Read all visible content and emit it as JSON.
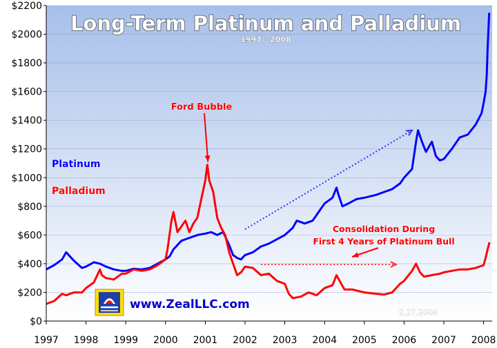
{
  "chart_data": {
    "type": "line",
    "title": "Long-Term Platinum and Palladium",
    "subtitle": "1997 - 2008",
    "xlabel": "",
    "ylabel": "",
    "xlim": [
      1997,
      2008.17
    ],
    "ylim": [
      0,
      2200
    ],
    "x_ticks": [
      "1997",
      "1998",
      "1999",
      "2000",
      "2001",
      "2002",
      "2003",
      "2004",
      "2005",
      "2006",
      "2007",
      "2008"
    ],
    "y_ticks": [
      "$0",
      "$200",
      "$400",
      "$600",
      "$800",
      "$1000",
      "$1200",
      "$1400",
      "$1600",
      "$1800",
      "$2000",
      "$2200"
    ],
    "grid": "horizontal",
    "legend": "left",
    "series": [
      {
        "name": "Platinum",
        "color": "#0000ff",
        "points": [
          [
            1997.0,
            360
          ],
          [
            1997.2,
            390
          ],
          [
            1997.4,
            430
          ],
          [
            1997.5,
            480
          ],
          [
            1997.7,
            420
          ],
          [
            1997.9,
            370
          ],
          [
            1998.0,
            380
          ],
          [
            1998.2,
            410
          ],
          [
            1998.35,
            400
          ],
          [
            1998.5,
            380
          ],
          [
            1998.7,
            360
          ],
          [
            1998.9,
            350
          ],
          [
            1999.0,
            350
          ],
          [
            1999.2,
            365
          ],
          [
            1999.4,
            360
          ],
          [
            1999.6,
            370
          ],
          [
            1999.8,
            400
          ],
          [
            2000.0,
            430
          ],
          [
            2000.1,
            450
          ],
          [
            2000.2,
            500
          ],
          [
            2000.4,
            560
          ],
          [
            2000.6,
            580
          ],
          [
            2000.8,
            600
          ],
          [
            2001.0,
            610
          ],
          [
            2001.15,
            620
          ],
          [
            2001.3,
            600
          ],
          [
            2001.45,
            620
          ],
          [
            2001.5,
            590
          ],
          [
            2001.6,
            530
          ],
          [
            2001.7,
            460
          ],
          [
            2001.8,
            440
          ],
          [
            2001.9,
            430
          ],
          [
            2002.0,
            460
          ],
          [
            2002.2,
            480
          ],
          [
            2002.4,
            520
          ],
          [
            2002.6,
            540
          ],
          [
            2002.8,
            570
          ],
          [
            2003.0,
            600
          ],
          [
            2003.2,
            650
          ],
          [
            2003.3,
            700
          ],
          [
            2003.5,
            680
          ],
          [
            2003.7,
            700
          ],
          [
            2003.9,
            780
          ],
          [
            2004.0,
            820
          ],
          [
            2004.2,
            860
          ],
          [
            2004.3,
            930
          ],
          [
            2004.35,
            880
          ],
          [
            2004.45,
            800
          ],
          [
            2004.6,
            820
          ],
          [
            2004.8,
            850
          ],
          [
            2005.0,
            860
          ],
          [
            2005.3,
            880
          ],
          [
            2005.5,
            900
          ],
          [
            2005.7,
            920
          ],
          [
            2005.9,
            960
          ],
          [
            2006.0,
            1000
          ],
          [
            2006.2,
            1060
          ],
          [
            2006.3,
            1250
          ],
          [
            2006.35,
            1330
          ],
          [
            2006.45,
            1250
          ],
          [
            2006.55,
            1180
          ],
          [
            2006.7,
            1250
          ],
          [
            2006.8,
            1150
          ],
          [
            2006.9,
            1120
          ],
          [
            2007.0,
            1130
          ],
          [
            2007.2,
            1200
          ],
          [
            2007.4,
            1280
          ],
          [
            2007.6,
            1300
          ],
          [
            2007.8,
            1370
          ],
          [
            2007.95,
            1450
          ],
          [
            2008.0,
            1520
          ],
          [
            2008.05,
            1600
          ],
          [
            2008.08,
            1720
          ],
          [
            2008.1,
            1900
          ],
          [
            2008.12,
            2020
          ],
          [
            2008.14,
            2150
          ]
        ]
      },
      {
        "name": "Palladium",
        "color": "#ff0000",
        "points": [
          [
            1997.0,
            120
          ],
          [
            1997.2,
            140
          ],
          [
            1997.4,
            190
          ],
          [
            1997.5,
            180
          ],
          [
            1997.7,
            200
          ],
          [
            1997.9,
            200
          ],
          [
            1998.0,
            230
          ],
          [
            1998.2,
            270
          ],
          [
            1998.35,
            360
          ],
          [
            1998.4,
            320
          ],
          [
            1998.5,
            300
          ],
          [
            1998.7,
            290
          ],
          [
            1998.9,
            330
          ],
          [
            1999.0,
            330
          ],
          [
            1999.2,
            360
          ],
          [
            1999.4,
            350
          ],
          [
            1999.6,
            360
          ],
          [
            1999.8,
            390
          ],
          [
            2000.0,
            430
          ],
          [
            2000.05,
            500
          ],
          [
            2000.15,
            700
          ],
          [
            2000.2,
            760
          ],
          [
            2000.3,
            620
          ],
          [
            2000.5,
            700
          ],
          [
            2000.6,
            620
          ],
          [
            2000.7,
            680
          ],
          [
            2000.8,
            720
          ],
          [
            2000.9,
            850
          ],
          [
            2001.0,
            980
          ],
          [
            2001.05,
            1090
          ],
          [
            2001.1,
            980
          ],
          [
            2001.2,
            900
          ],
          [
            2001.3,
            720
          ],
          [
            2001.4,
            650
          ],
          [
            2001.5,
            600
          ],
          [
            2001.6,
            480
          ],
          [
            2001.7,
            400
          ],
          [
            2001.8,
            320
          ],
          [
            2001.9,
            340
          ],
          [
            2002.0,
            380
          ],
          [
            2002.2,
            370
          ],
          [
            2002.4,
            320
          ],
          [
            2002.6,
            330
          ],
          [
            2002.8,
            280
          ],
          [
            2003.0,
            260
          ],
          [
            2003.1,
            190
          ],
          [
            2003.2,
            160
          ],
          [
            2003.4,
            170
          ],
          [
            2003.6,
            200
          ],
          [
            2003.8,
            180
          ],
          [
            2004.0,
            230
          ],
          [
            2004.2,
            250
          ],
          [
            2004.3,
            320
          ],
          [
            2004.4,
            270
          ],
          [
            2004.5,
            220
          ],
          [
            2004.7,
            220
          ],
          [
            2005.0,
            200
          ],
          [
            2005.3,
            190
          ],
          [
            2005.5,
            185
          ],
          [
            2005.7,
            200
          ],
          [
            2005.9,
            260
          ],
          [
            2006.0,
            280
          ],
          [
            2006.2,
            350
          ],
          [
            2006.3,
            400
          ],
          [
            2006.4,
            340
          ],
          [
            2006.5,
            310
          ],
          [
            2006.7,
            320
          ],
          [
            2006.9,
            330
          ],
          [
            2007.0,
            340
          ],
          [
            2007.2,
            350
          ],
          [
            2007.4,
            360
          ],
          [
            2007.6,
            360
          ],
          [
            2007.8,
            370
          ],
          [
            2008.0,
            390
          ],
          [
            2008.05,
            440
          ],
          [
            2008.1,
            500
          ],
          [
            2008.15,
            550
          ]
        ]
      }
    ],
    "legend_labels": {
      "platinum": "Platinum",
      "palladium": "Palladium"
    },
    "annotations": {
      "ford_bubble": "Ford Bubble",
      "consolidation_line1": "Consolidation During",
      "consolidation_line2": "First 4 Years of Platinum Bull",
      "date_stamp": "2.27.2008",
      "website": "www.ZealLLC.com"
    },
    "trend_arrows": [
      {
        "name": "platinum-uptrend-arrow",
        "color": "#3333ff",
        "from": [
          2002.0,
          640
        ],
        "to": [
          2006.2,
          1330
        ]
      },
      {
        "name": "palladium-consolidation-arrow",
        "color": "#ff3333",
        "from": [
          2002.4,
          395
        ],
        "to": [
          2005.8,
          395
        ]
      }
    ]
  }
}
